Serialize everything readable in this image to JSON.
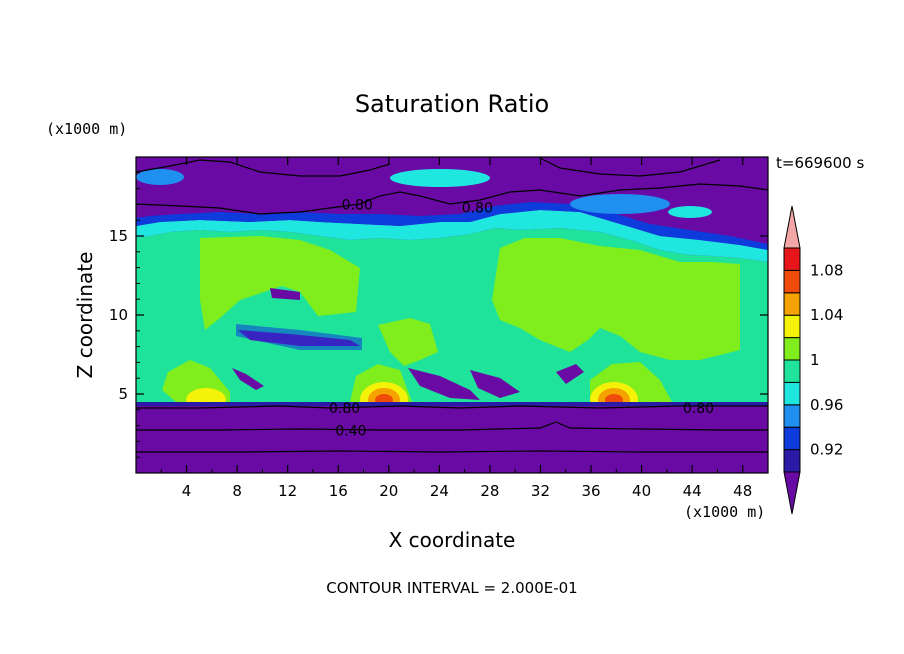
{
  "chart_data": {
    "type": "heatmap",
    "title": "Saturation Ratio",
    "xlabel": "X coordinate",
    "ylabel": "Z coordinate",
    "x_units": "(x1000 m)",
    "z_units": "(x1000 m)",
    "time_label": "t=669600 s",
    "footer": "CONTOUR INTERVAL = 2.000E-01",
    "xlim": [
      0,
      50
    ],
    "ylim": [
      0,
      20
    ],
    "x_ticks": [
      "4",
      "8",
      "12",
      "16",
      "20",
      "24",
      "28",
      "32",
      "36",
      "40",
      "44",
      "48"
    ],
    "y_ticks": [
      "5",
      "10",
      "15"
    ],
    "colorbar": {
      "labels": [
        "0.92",
        "0.96",
        "1",
        "1.04",
        "1.08"
      ],
      "levels": [
        0.9,
        0.92,
        0.94,
        0.96,
        0.98,
        1.0,
        1.02,
        1.04,
        1.06,
        1.08,
        1.1
      ],
      "colors": [
        "#6a0aa4",
        "#2a1aa8",
        "#0e3bdc",
        "#1f8ff0",
        "#20e6e0",
        "#1fe39a",
        "#7fee1c",
        "#f5f20a",
        "#f5a200",
        "#ef4b0a",
        "#e6151a",
        "#f2a6a6"
      ]
    },
    "contour_labels": [
      {
        "text": "0.80",
        "x": 17.5,
        "z": 17.0
      },
      {
        "text": "0.80",
        "x": 27.0,
        "z": 16.8
      },
      {
        "text": "0.80",
        "x": 16.5,
        "z": 4.1
      },
      {
        "text": "0.80",
        "x": 44.5,
        "z": 4.1
      },
      {
        "text": "0.40",
        "x": 17.0,
        "z": 2.7
      }
    ]
  }
}
